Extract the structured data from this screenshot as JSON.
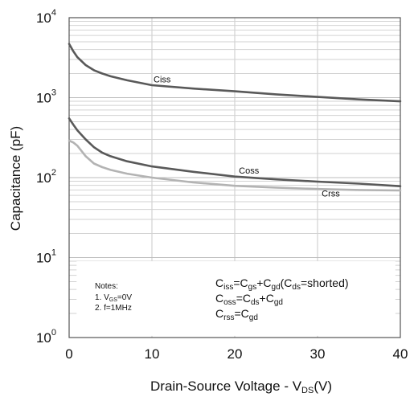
{
  "chart_data": {
    "type": "line",
    "xlabel": "Drain-Source Voltage - V",
    "xlabel_sub": "DS",
    "xlabel_unit": "(V)",
    "ylabel": "Capacitance (pF)",
    "xlim": [
      0,
      40
    ],
    "ylim": [
      1,
      10000
    ],
    "yscale": "log",
    "grid": true,
    "x_ticks": [
      "0",
      "10",
      "20",
      "30",
      "40"
    ],
    "y_ticks": [
      {
        "base": "10",
        "exp": "0",
        "value": 1
      },
      {
        "base": "10",
        "exp": "1",
        "value": 10
      },
      {
        "base": "10",
        "exp": "2",
        "value": 100
      },
      {
        "base": "10",
        "exp": "3",
        "value": 1000
      },
      {
        "base": "10",
        "exp": "4",
        "value": 10000
      }
    ],
    "series": [
      {
        "name": "Ciss",
        "color": "#595959",
        "points": [
          [
            0,
            4700
          ],
          [
            0.5,
            3800
          ],
          [
            1,
            3200
          ],
          [
            2,
            2550
          ],
          [
            3,
            2200
          ],
          [
            4,
            2000
          ],
          [
            5,
            1850
          ],
          [
            7,
            1650
          ],
          [
            10,
            1430
          ],
          [
            15,
            1300
          ],
          [
            20,
            1200
          ],
          [
            25,
            1100
          ],
          [
            30,
            1020
          ],
          [
            35,
            950
          ],
          [
            40,
            900
          ]
        ]
      },
      {
        "name": "Coss",
        "color": "#595959",
        "points": [
          [
            0,
            550
          ],
          [
            0.5,
            460
          ],
          [
            1,
            390
          ],
          [
            2,
            300
          ],
          [
            3,
            240
          ],
          [
            4,
            205
          ],
          [
            5,
            185
          ],
          [
            7,
            160
          ],
          [
            10,
            138
          ],
          [
            15,
            118
          ],
          [
            20,
            103
          ],
          [
            25,
            95
          ],
          [
            30,
            89
          ],
          [
            35,
            84
          ],
          [
            40,
            78
          ]
        ]
      },
      {
        "name": "Crss",
        "color": "#b3b3b3",
        "points": [
          [
            0,
            290
          ],
          [
            0.5,
            275
          ],
          [
            1,
            250
          ],
          [
            1.5,
            215
          ],
          [
            2,
            185
          ],
          [
            3,
            150
          ],
          [
            4,
            135
          ],
          [
            5,
            125
          ],
          [
            7,
            112
          ],
          [
            10,
            100
          ],
          [
            15,
            87
          ],
          [
            20,
            79
          ],
          [
            25,
            75
          ],
          [
            30,
            72
          ],
          [
            35,
            70
          ],
          [
            40,
            69
          ]
        ]
      }
    ],
    "notes": {
      "title": "Notes:",
      "items": [
        {
          "prefix": "1. V",
          "sub": "GS",
          "suffix": "=0V"
        },
        {
          "prefix": "2. f=1MHz",
          "sub": "",
          "suffix": ""
        }
      ]
    },
    "formulas": [
      [
        {
          "t": "C"
        },
        {
          "s": "iss"
        },
        {
          "t": "=C"
        },
        {
          "s": "gs"
        },
        {
          "t": "+C"
        },
        {
          "s": "gd"
        },
        {
          "t": "(C"
        },
        {
          "s": "ds"
        },
        {
          "t": "=shorted)"
        }
      ],
      [
        {
          "t": "C"
        },
        {
          "s": "oss"
        },
        {
          "t": "=C"
        },
        {
          "s": "ds"
        },
        {
          "t": "+C"
        },
        {
          "s": "gd"
        }
      ],
      [
        {
          "t": "C"
        },
        {
          "s": "rss"
        },
        {
          "t": "=C"
        },
        {
          "s": "gd"
        }
      ]
    ]
  }
}
